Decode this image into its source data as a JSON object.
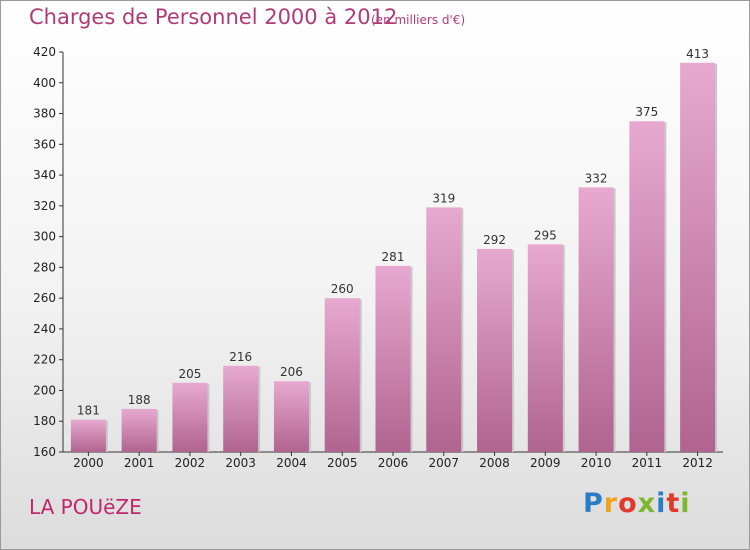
{
  "header": {
    "title": "Charges de Personnel 2000 à 2012",
    "subtitle": "(en milliers d'€)"
  },
  "footer": {
    "place": "LA POUëZE",
    "logo": "Proxiti"
  },
  "colors": {
    "bar_top": "#e7a9d0",
    "bar_bottom": "#b0648f",
    "title": "#b03a78"
  },
  "chart_data": {
    "type": "bar",
    "title": "Charges de Personnel 2000 à 2012",
    "subtitle": "(en milliers d'€)",
    "categories": [
      "2000",
      "2001",
      "2002",
      "2003",
      "2004",
      "2005",
      "2006",
      "2007",
      "2008",
      "2009",
      "2010",
      "2011",
      "2012"
    ],
    "values": [
      181,
      188,
      205,
      216,
      206,
      260,
      281,
      319,
      292,
      295,
      332,
      375,
      413
    ],
    "ylim": [
      160,
      420
    ],
    "yticks": [
      160,
      180,
      200,
      220,
      240,
      260,
      280,
      300,
      320,
      340,
      360,
      380,
      400,
      420
    ],
    "grid": false,
    "data_labels": true
  }
}
